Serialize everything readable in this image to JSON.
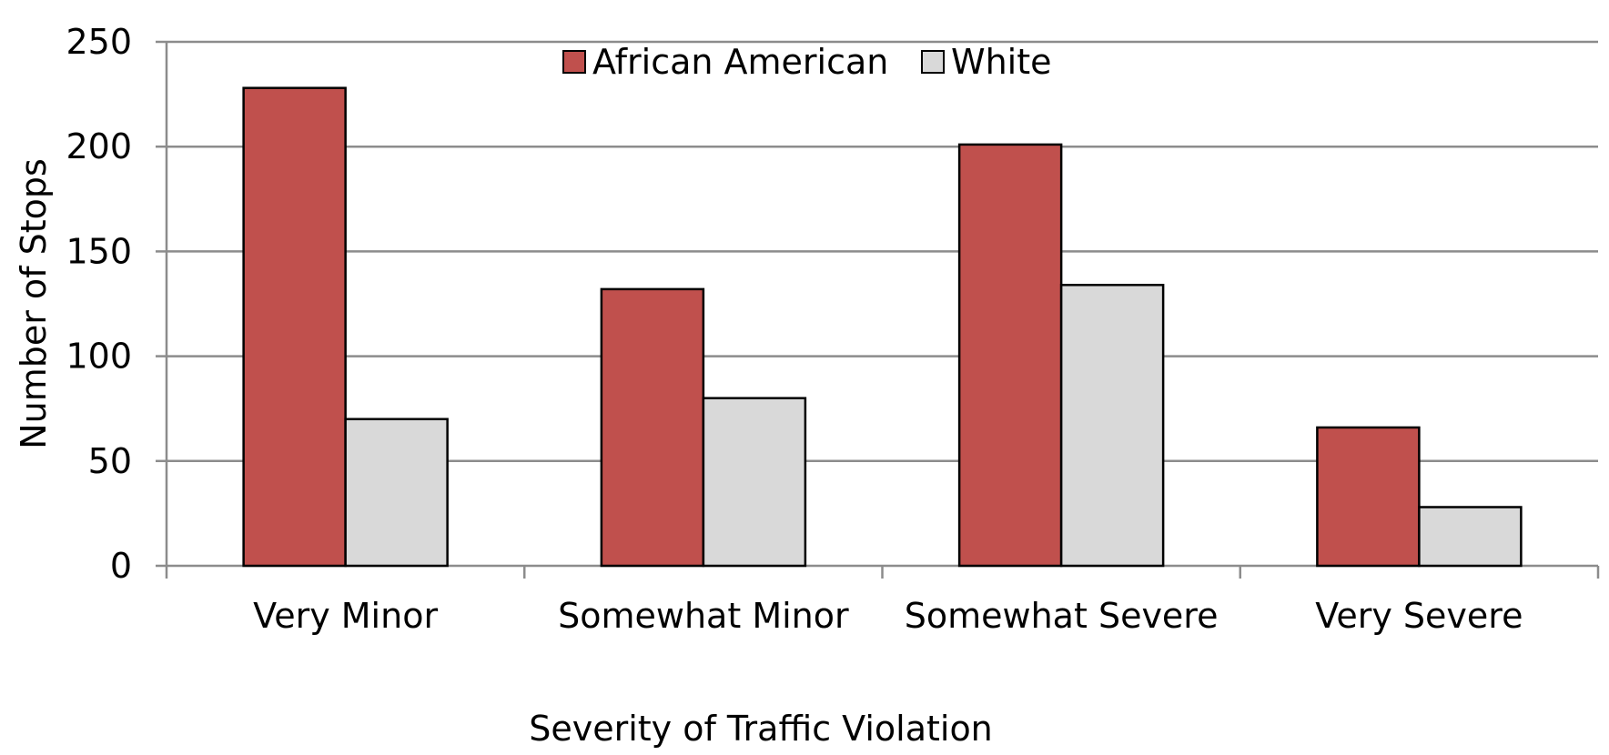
{
  "chart_data": {
    "type": "bar",
    "title": "",
    "xlabel": "Severity of Traffic Violation",
    "ylabel": "Number of Stops",
    "ylim": [
      0,
      250
    ],
    "yticks": [
      0,
      50,
      100,
      150,
      200,
      250
    ],
    "grid": true,
    "legend_position": "top-center",
    "categories": [
      "Very Minor",
      "Somewhat Minor",
      "Somewhat Severe",
      "Very Severe"
    ],
    "series": [
      {
        "name": "African American",
        "color": "#c0504d",
        "values": [
          228,
          132,
          201,
          66
        ]
      },
      {
        "name": "White",
        "color": "#d9d9d9",
        "values": [
          70,
          80,
          134,
          28
        ]
      }
    ]
  }
}
